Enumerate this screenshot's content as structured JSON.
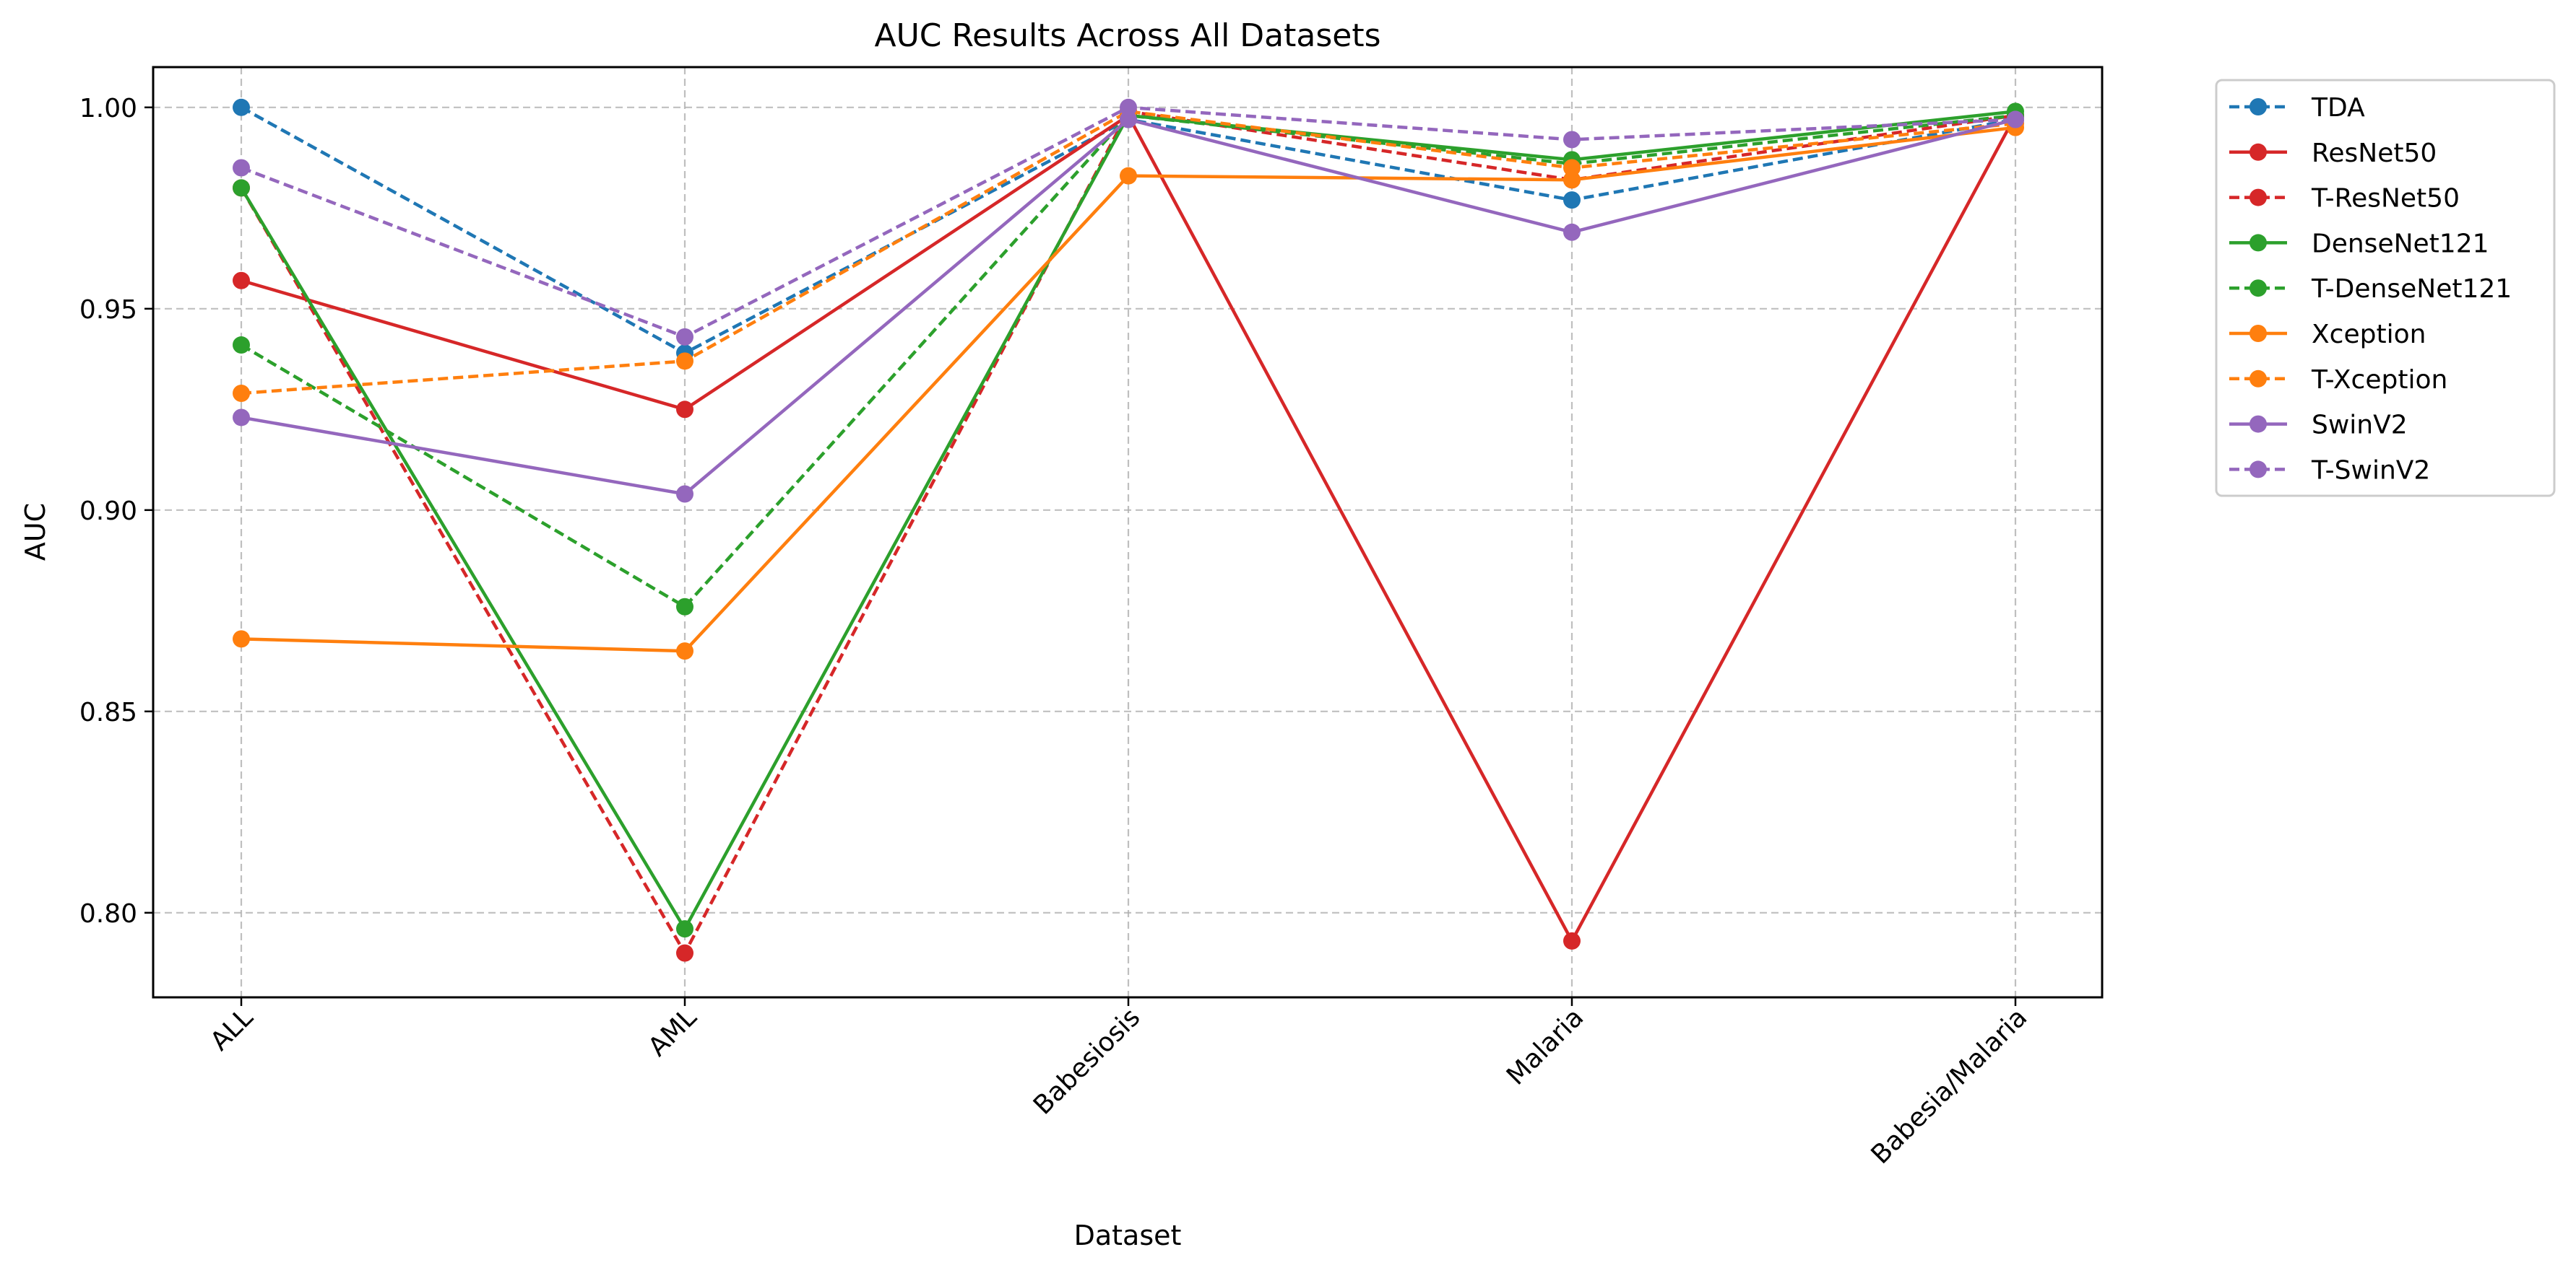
{
  "chart_data": {
    "type": "line",
    "title": "AUC Results Across All Datasets",
    "xlabel": "Dataset",
    "ylabel": "AUC",
    "categories": [
      "ALL",
      "AML",
      "Babesiosis",
      "Malaria",
      "Babesia/Malaria"
    ],
    "ylim": [
      0.779,
      1.01
    ],
    "yticks": [
      0.8,
      0.85,
      0.9,
      0.95,
      1.0
    ],
    "ytick_labels": [
      "0.80",
      "0.85",
      "0.90",
      "0.95",
      "1.00"
    ],
    "grid": true,
    "legend_position": "outside-top-right",
    "series": [
      {
        "name": "TDA",
        "color": "#1f77b4",
        "dashed": true,
        "values": [
          1.0,
          0.939,
          0.997,
          0.977,
          0.997
        ]
      },
      {
        "name": "ResNet50",
        "color": "#d62728",
        "dashed": false,
        "values": [
          0.957,
          0.925,
          0.998,
          0.793,
          0.998
        ]
      },
      {
        "name": "T-ResNet50",
        "color": "#d62728",
        "dashed": true,
        "values": [
          0.98,
          0.79,
          0.999,
          0.982,
          0.998
        ]
      },
      {
        "name": "DenseNet121",
        "color": "#2ca02c",
        "dashed": false,
        "values": [
          0.98,
          0.796,
          0.998,
          0.987,
          0.999
        ]
      },
      {
        "name": "T-DenseNet121",
        "color": "#2ca02c",
        "dashed": true,
        "values": [
          0.941,
          0.876,
          0.998,
          0.986,
          0.998
        ]
      },
      {
        "name": "Xception",
        "color": "#ff7f0e",
        "dashed": false,
        "values": [
          0.868,
          0.865,
          0.983,
          0.982,
          0.995
        ]
      },
      {
        "name": "T-Xception",
        "color": "#ff7f0e",
        "dashed": true,
        "values": [
          0.929,
          0.937,
          0.999,
          0.985,
          0.996
        ]
      },
      {
        "name": "SwinV2",
        "color": "#9467bd",
        "dashed": false,
        "values": [
          0.923,
          0.904,
          0.997,
          0.969,
          0.997
        ]
      },
      {
        "name": "T-SwinV2",
        "color": "#9467bd",
        "dashed": true,
        "values": [
          0.985,
          0.943,
          1.0,
          0.992,
          0.997
        ]
      }
    ]
  }
}
